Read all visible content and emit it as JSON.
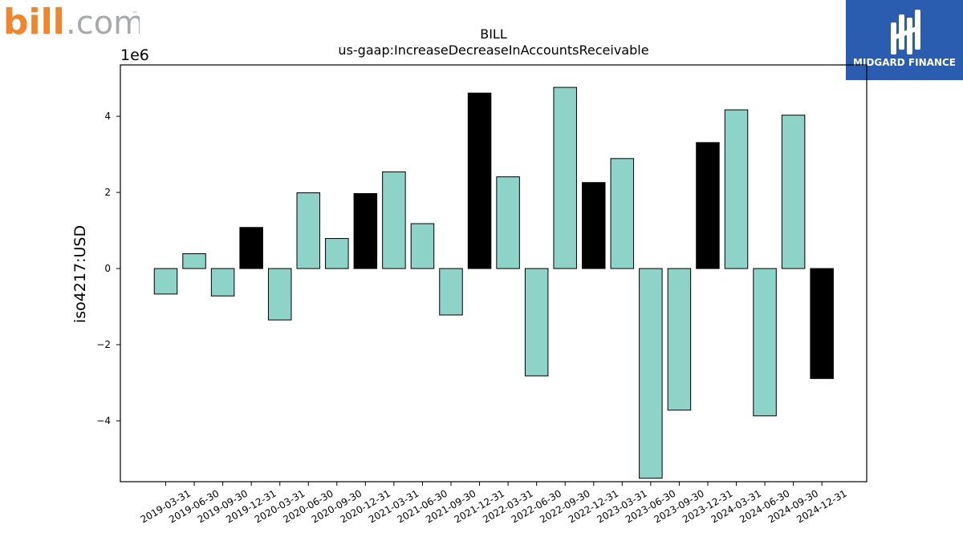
{
  "branding": {
    "left_logo": {
      "text_main": "bill",
      "text_suffix": ".com",
      "trademark": "™",
      "icon": "bill-logo-icon",
      "color_accent": "#f2852a",
      "color_gray": "#a7a9ac"
    },
    "right_logo": {
      "text": "MIDGARD FINANCE",
      "icon": "midgard-finance-logo-icon",
      "background": "#2a5db0"
    }
  },
  "chart_data": {
    "type": "bar",
    "title": "BILL",
    "subtitle": "us-gaap:IncreaseDecreaseInAccountsReceivable",
    "xlabel": "",
    "ylabel": "iso4217:USD",
    "y_offset_label": "1e6",
    "ylim": [
      -5.6,
      5.35
    ],
    "yticks": [
      -4,
      -2,
      0,
      2,
      4
    ],
    "ytick_labels": [
      "−4",
      "−2",
      "0",
      "2",
      "4"
    ],
    "grid": false,
    "legend": "none",
    "colors": {
      "quarter": "#8dd3c7",
      "year_end": "#000000",
      "edge": "#000000"
    },
    "categories": [
      "2019-03-31",
      "2019-06-30",
      "2019-09-30",
      "2019-12-31",
      "2020-03-31",
      "2020-06-30",
      "2020-09-30",
      "2020-12-31",
      "2021-03-31",
      "2021-06-30",
      "2021-09-30",
      "2021-12-31",
      "2022-03-31",
      "2022-06-30",
      "2022-09-30",
      "2022-12-31",
      "2023-03-31",
      "2023-06-30",
      "2023-09-30",
      "2023-12-31",
      "2024-03-31",
      "2024-06-30",
      "2024-09-30",
      "2024-12-31"
    ],
    "values": [
      -0.67,
      0.39,
      -0.72,
      1.08,
      -1.35,
      1.99,
      0.79,
      1.97,
      2.54,
      1.18,
      -1.22,
      4.61,
      2.41,
      -2.82,
      4.76,
      2.26,
      2.89,
      -5.51,
      -3.72,
      3.31,
      4.17,
      -3.87,
      4.03,
      -2.89
    ],
    "highlight": [
      false,
      false,
      false,
      true,
      false,
      false,
      false,
      true,
      false,
      false,
      false,
      true,
      false,
      false,
      false,
      true,
      false,
      false,
      false,
      true,
      false,
      false,
      false,
      true
    ]
  }
}
